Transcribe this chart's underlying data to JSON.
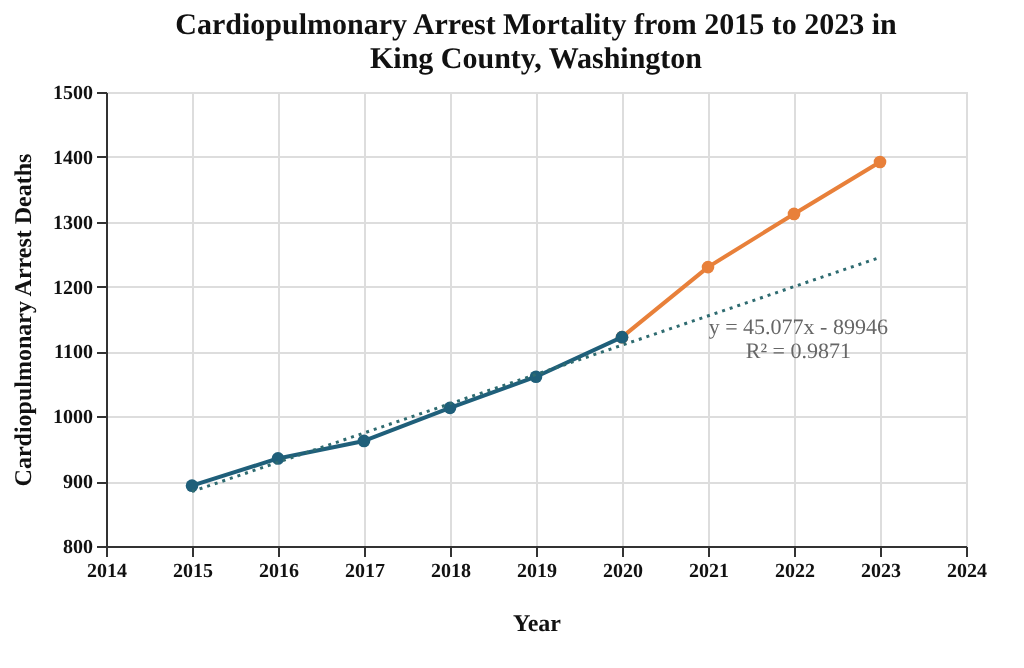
{
  "chart_data": {
    "type": "line",
    "title": [
      "Cardiopulmonary Arrest Mortality from 2015 to 2023 in",
      "King County, Washington"
    ],
    "xlabel": "Year",
    "ylabel": "Cardiopulmonary Arrest Deaths",
    "series": [
      {
        "color": "#e8803a",
        "x": [
          2020,
          2021,
          2022,
          2023
        ],
        "values": [
          1122,
          1230,
          1312,
          1392
        ],
        "marker": "circle",
        "line_style": "solid"
      },
      {
        "color": "#1f5f7a",
        "x": [
          2015,
          2016,
          2017,
          2018,
          2019,
          2020
        ],
        "values": [
          893,
          935,
          962,
          1013,
          1061,
          1122
        ],
        "marker": "circle",
        "line_style": "solid"
      },
      {
        "color": "#2e6b70",
        "x": [
          2015,
          2023
        ],
        "values": [
          884,
          1245
        ],
        "marker": "none",
        "line_style": "dotted"
      }
    ],
    "annotations": [
      "y = 45.077x - 89946",
      "R² = 0.9871"
    ],
    "xlim": [
      2014,
      2024
    ],
    "xticks": [
      2014,
      2015,
      2016,
      2017,
      2018,
      2019,
      2020,
      2021,
      2022,
      2023,
      2024
    ],
    "ylim": [
      800,
      1500
    ],
    "yticks": [
      800,
      900,
      1000,
      1100,
      1200,
      1300,
      1400,
      1500
    ],
    "grid": true
  }
}
